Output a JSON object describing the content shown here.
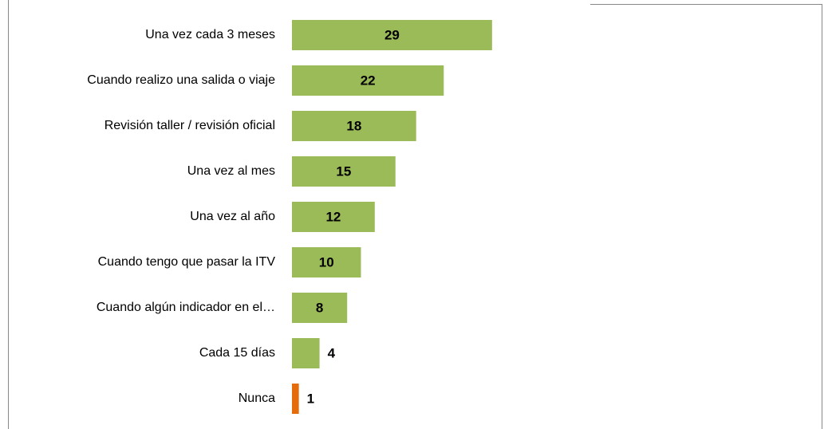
{
  "chart_data": {
    "type": "barh",
    "categories": [
      "Una vez cada 3 meses",
      "Cuando realizo una salida o viaje",
      "Revisión taller / revisión oficial",
      "Una vez al mes",
      "Una vez al año",
      "Cuando tengo que pasar la ITV",
      "Cuando algún indicador en el…",
      "Cada 15 días",
      "Nunca"
    ],
    "values": [
      29,
      22,
      18,
      15,
      12,
      10,
      8,
      4,
      1
    ],
    "colors": [
      "#9bbb59",
      "#9bbb59",
      "#9bbb59",
      "#9bbb59",
      "#9bbb59",
      "#9bbb59",
      "#9bbb59",
      "#9bbb59",
      "#e46c0a"
    ]
  }
}
